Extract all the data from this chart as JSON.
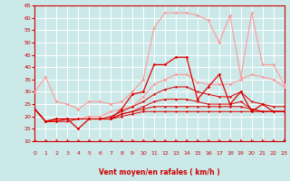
{
  "xlabel": "Vent moyen/en rafales ( km/h )",
  "xlim": [
    0,
    23
  ],
  "ylim": [
    10,
    65
  ],
  "yticks": [
    10,
    15,
    20,
    25,
    30,
    35,
    40,
    45,
    50,
    55,
    60,
    65
  ],
  "xticks": [
    0,
    1,
    2,
    3,
    4,
    5,
    6,
    7,
    8,
    9,
    10,
    11,
    12,
    13,
    14,
    15,
    16,
    17,
    18,
    19,
    20,
    21,
    22,
    23
  ],
  "background_color": "#cce9e9",
  "grid_color": "#ffffff",
  "series": [
    {
      "y": [
        30,
        36,
        26,
        25,
        23,
        26,
        26,
        25,
        26,
        30,
        35,
        56,
        62,
        62,
        62,
        61,
        59,
        50,
        61,
        36,
        62,
        41,
        41,
        33
      ],
      "color": "#ff9999",
      "lw": 0.8,
      "marker": "D",
      "ms": 1.8,
      "zorder": 3
    },
    {
      "y": [
        23,
        18,
        18,
        19,
        19,
        20,
        20,
        22,
        23,
        24,
        28,
        33,
        35,
        37,
        37,
        34,
        33,
        33,
        33,
        35,
        37,
        36,
        35,
        32
      ],
      "color": "#ff9999",
      "lw": 0.8,
      "marker": "D",
      "ms": 1.8,
      "zorder": 3
    },
    {
      "y": [
        23,
        18,
        19,
        19,
        15,
        19,
        19,
        19,
        23,
        29,
        30,
        41,
        41,
        44,
        44,
        27,
        32,
        37,
        25,
        30,
        22,
        25,
        22,
        22
      ],
      "color": "#dd0000",
      "lw": 0.9,
      "marker": "D",
      "ms": 1.8,
      "zorder": 4
    },
    {
      "y": [
        23,
        18,
        18,
        18,
        19,
        19,
        19,
        19,
        20,
        21,
        22,
        22,
        22,
        22,
        22,
        22,
        22,
        22,
        22,
        22,
        22,
        22,
        22,
        22
      ],
      "color": "#dd0000",
      "lw": 0.7,
      "marker": "D",
      "ms": 1.5,
      "zorder": 4
    },
    {
      "y": [
        23,
        18,
        18,
        19,
        19,
        19,
        19,
        19,
        21,
        22,
        23,
        24,
        24,
        24,
        24,
        24,
        24,
        24,
        24,
        24,
        23,
        22,
        22,
        22
      ],
      "color": "#dd0000",
      "lw": 0.7,
      "marker": "D",
      "ms": 1.5,
      "zorder": 4
    },
    {
      "y": [
        23,
        18,
        19,
        19,
        19,
        19,
        19,
        19,
        21,
        22,
        24,
        26,
        27,
        27,
        27,
        26,
        25,
        25,
        25,
        26,
        23,
        22,
        22,
        22
      ],
      "color": "#dd0000",
      "lw": 0.7,
      "marker": "D",
      "ms": 1.5,
      "zorder": 4
    },
    {
      "y": [
        23,
        18,
        19,
        19,
        19,
        19,
        19,
        20,
        22,
        24,
        26,
        29,
        31,
        32,
        32,
        30,
        29,
        28,
        28,
        30,
        26,
        25,
        24,
        24
      ],
      "color": "#dd0000",
      "lw": 0.7,
      "marker": "D",
      "ms": 1.5,
      "zorder": 4
    }
  ]
}
